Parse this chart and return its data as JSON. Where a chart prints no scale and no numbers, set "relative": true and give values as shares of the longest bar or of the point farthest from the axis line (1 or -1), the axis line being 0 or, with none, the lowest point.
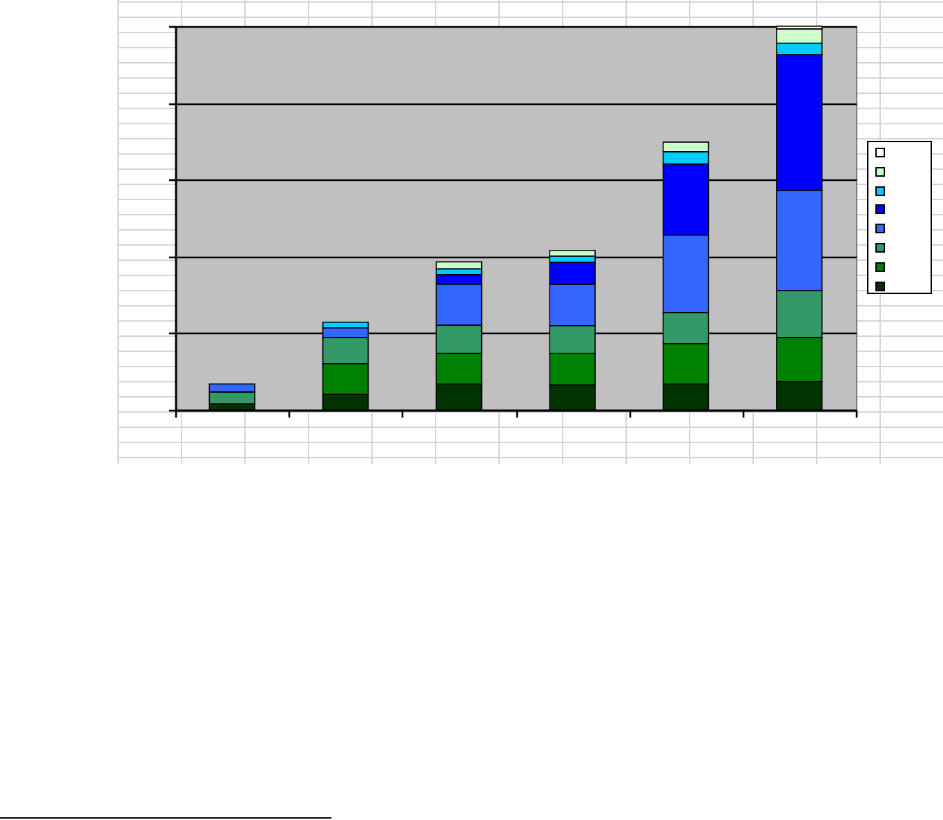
{
  "chart_data": {
    "type": "bar",
    "relative": true,
    "stacked": true,
    "grid": "y",
    "categories": [
      null,
      null,
      null,
      null,
      null,
      null
    ],
    "series": [
      {
        "color": "#003300",
        "values": [
          0.016,
          0.041,
          0.068,
          0.065,
          0.068,
          0.074
        ]
      },
      {
        "color": "#008000",
        "values": [
          null,
          0.08,
          0.08,
          0.082,
          0.105,
          0.115
        ]
      },
      {
        "color": "#339966",
        "values": [
          0.031,
          0.068,
          0.073,
          0.073,
          0.081,
          0.122
        ]
      },
      {
        "color": "#3366ff",
        "values": [
          0.021,
          0.025,
          0.107,
          0.107,
          0.202,
          0.261
        ]
      },
      {
        "color": "#0000ff",
        "values": [
          null,
          null,
          0.025,
          0.058,
          0.185,
          0.354
        ]
      },
      {
        "color": "#00ccff",
        "values": [
          null,
          0.015,
          0.015,
          0.016,
          0.032,
          0.03
        ]
      },
      {
        "color": "#ccffcc",
        "values": [
          null,
          null,
          0.018,
          0.015,
          0.025,
          0.037
        ]
      },
      {
        "color": "#ffffff",
        "values": [
          null,
          null,
          null,
          null,
          null,
          0.007
        ]
      }
    ]
  }
}
